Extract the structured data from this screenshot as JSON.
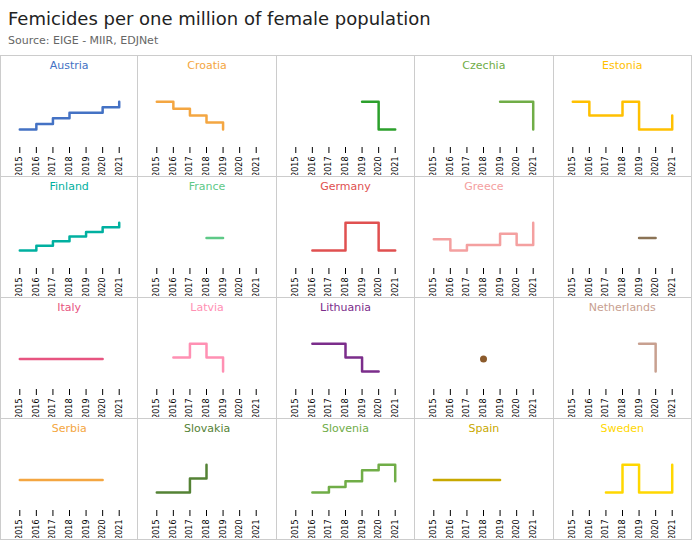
{
  "title": "Femicides per one million of female population",
  "subtitle": "Source: EIGE - MIIR, EDJNet",
  "chart_data": [
    {
      "type": "line",
      "line_style": "step",
      "title": "Austria",
      "color": "#4472c4",
      "x": [
        2015,
        2016,
        2017,
        2018,
        2019,
        2020,
        2021
      ],
      "values": [
        3.0,
        3.5,
        4.0,
        4.5,
        4.5,
        5.0,
        5.5
      ],
      "xlim": [
        2014.5,
        2021.5
      ],
      "xticks": [
        2015,
        2016,
        2017,
        2018,
        2019,
        2020,
        2021
      ],
      "ylim": [
        1.375,
        7.5
      ],
      "tick_labels": "x"
    },
    {
      "type": "line",
      "line_style": "step",
      "title": "Croatia",
      "color": "#f4a641",
      "x": [
        2015,
        2016,
        2017,
        2018,
        2019,
        2020,
        2021
      ],
      "values": [
        5.0,
        4.5,
        4.0,
        3.5,
        3.0,
        null,
        null
      ],
      "xlim": [
        2014.5,
        2021.5
      ],
      "xticks": [
        2015,
        2016,
        2017,
        2018,
        2019,
        2020,
        2021
      ],
      "ylim": [
        1.7,
        6.6
      ],
      "tick_labels": "x"
    },
    {
      "type": "line",
      "line_style": "step",
      "color": "#2ca02c",
      "x": [
        2015,
        2016,
        2017,
        2018,
        2019,
        2020,
        2021
      ],
      "values": [
        null,
        null,
        null,
        null,
        9.0,
        5.0,
        5.0
      ],
      "xlim": [
        2014.5,
        2021.5
      ],
      "xticks": [
        2015,
        2016,
        2017,
        2018,
        2019,
        2020,
        2021
      ],
      "ylim": [
        2.4,
        12.2
      ],
      "tick_labels": "x"
    },
    {
      "type": "line",
      "line_style": "step",
      "title": "Czechia",
      "color": "#70ad47",
      "x": [
        2015,
        2016,
        2017,
        2018,
        2019,
        2020,
        2021
      ],
      "values": [
        null,
        null,
        null,
        null,
        3.0,
        3.0,
        2.0
      ],
      "xlim": [
        2014.5,
        2021.5
      ],
      "xticks": [
        2015,
        2016,
        2017,
        2018,
        2019,
        2020,
        2021
      ],
      "ylim": [
        1.35,
        3.8
      ],
      "tick_labels": "x"
    },
    {
      "type": "line",
      "line_style": "step",
      "title": "Estonia",
      "color": "#ffc000",
      "x": [
        2015,
        2016,
        2017,
        2018,
        2019,
        2020,
        2021
      ],
      "values": [
        5.0,
        4.0,
        4.0,
        5.0,
        3.0,
        3.0,
        4.0
      ],
      "xlim": [
        2014.5,
        2021.5
      ],
      "xticks": [
        2015,
        2016,
        2017,
        2018,
        2019,
        2020,
        2021
      ],
      "ylim": [
        1.7,
        6.6
      ],
      "tick_labels": "x"
    },
    {
      "type": "line",
      "line_style": "step",
      "title": "Finland",
      "color": "#00b0a0",
      "x": [
        2015,
        2016,
        2017,
        2018,
        2019,
        2020,
        2021
      ],
      "values": [
        2.0,
        2.5,
        3.0,
        3.5,
        4.0,
        4.5,
        5.0
      ],
      "xlim": [
        2014.5,
        2021.5
      ],
      "xticks": [
        2015,
        2016,
        2017,
        2018,
        2019,
        2020,
        2021
      ],
      "ylim": [
        0.05,
        7.4
      ],
      "tick_labels": "x"
    },
    {
      "type": "line",
      "line_style": "step",
      "title": "France",
      "color": "#5ec987",
      "x": [
        2015,
        2016,
        2017,
        2018,
        2019,
        2020,
        2021
      ],
      "values": [
        null,
        null,
        null,
        3.0,
        3.0,
        null,
        null
      ],
      "xlim": [
        2014.5,
        2021.5
      ],
      "xticks": [
        2015,
        2016,
        2017,
        2018,
        2019,
        2020,
        2021
      ],
      "ylim": [
        2.35,
        3.8
      ],
      "tick_labels": "x"
    },
    {
      "type": "line",
      "line_style": "step",
      "title": "Germany",
      "color": "#e05050",
      "x": [
        2015,
        2016,
        2017,
        2018,
        2019,
        2020,
        2021
      ],
      "values": [
        null,
        4.0,
        4.0,
        5.0,
        5.0,
        4.0,
        4.0
      ],
      "xlim": [
        2014.5,
        2021.5
      ],
      "xticks": [
        2015,
        2016,
        2017,
        2018,
        2019,
        2020,
        2021
      ],
      "ylim": [
        3.35,
        5.8
      ],
      "tick_labels": "x"
    },
    {
      "type": "line",
      "line_style": "step",
      "title": "Greece",
      "color": "#f4a0a0",
      "x": [
        2015,
        2016,
        2017,
        2018,
        2019,
        2020,
        2021
      ],
      "values": [
        4.0,
        3.0,
        3.5,
        3.5,
        4.5,
        3.5,
        5.5
      ],
      "xlim": [
        2014.5,
        2021.5
      ],
      "xticks": [
        2015,
        2016,
        2017,
        2018,
        2019,
        2020,
        2021
      ],
      "ylim": [
        1.375,
        7.5
      ],
      "tick_labels": "x"
    },
    {
      "type": "line",
      "line_style": "step",
      "color": "#8b7355",
      "x": [
        2015,
        2016,
        2017,
        2018,
        2019,
        2020,
        2021
      ],
      "values": [
        null,
        null,
        null,
        null,
        3.0,
        3.0,
        null
      ],
      "xlim": [
        2014.5,
        2021.5
      ],
      "xticks": [
        2015,
        2016,
        2017,
        2018,
        2019,
        2020,
        2021
      ],
      "ylim": [
        2.35,
        3.8
      ],
      "tick_labels": "x"
    },
    {
      "type": "line",
      "line_style": "step",
      "title": "Italy",
      "color": "#e75480",
      "x": [
        2015,
        2016,
        2017,
        2018,
        2019,
        2020,
        2021
      ],
      "values": [
        2.0,
        2.0,
        2.0,
        2.0,
        2.0,
        2.0,
        null
      ],
      "xlim": [
        2014.5,
        2021.5
      ],
      "xticks": [
        2015,
        2016,
        2017,
        2018,
        2019,
        2020,
        2021
      ],
      "ylim": [
        1.35,
        2.8
      ],
      "tick_labels": "x"
    },
    {
      "type": "line",
      "line_style": "step",
      "title": "Latvia",
      "color": "#ff90b3",
      "x": [
        2015,
        2016,
        2017,
        2018,
        2019,
        2020,
        2021
      ],
      "values": [
        null,
        5.0,
        6.0,
        5.0,
        4.0,
        null,
        null
      ],
      "xlim": [
        2014.5,
        2021.5
      ],
      "xticks": [
        2015,
        2016,
        2017,
        2018,
        2019,
        2020,
        2021
      ],
      "ylim": [
        2.7,
        7.6
      ],
      "tick_labels": "x"
    },
    {
      "type": "line",
      "line_style": "step",
      "title": "Lithuania",
      "color": "#7b2d8b",
      "x": [
        2015,
        2016,
        2017,
        2018,
        2019,
        2020,
        2021
      ],
      "values": [
        null,
        5.0,
        5.0,
        4.0,
        3.0,
        3.0,
        null
      ],
      "xlim": [
        2014.5,
        2021.5
      ],
      "xticks": [
        2015,
        2016,
        2017,
        2018,
        2019,
        2020,
        2021
      ],
      "ylim": [
        1.7,
        6.6
      ],
      "tick_labels": "x"
    },
    {
      "type": "scatter",
      "marker": "dot",
      "color": "#8b5a2b",
      "x": [
        2015,
        2016,
        2017,
        2018,
        2019,
        2020,
        2021
      ],
      "values": [
        null,
        null,
        null,
        4.0,
        null,
        null,
        null
      ],
      "xlim": [
        2014.5,
        2021.5
      ],
      "xticks": [
        2015,
        2016,
        2017,
        2018,
        2019,
        2020,
        2021
      ],
      "ylim": [
        3.35,
        4.8
      ],
      "tick_labels": "x"
    },
    {
      "type": "line",
      "line_style": "step",
      "title": "Netherlands",
      "color": "#c8a090",
      "x": [
        2015,
        2016,
        2017,
        2018,
        2019,
        2020,
        2021
      ],
      "values": [
        null,
        null,
        null,
        null,
        3.0,
        2.5,
        null
      ],
      "xlim": [
        2014.5,
        2021.5
      ],
      "xticks": [
        2015,
        2016,
        2017,
        2018,
        2019,
        2020,
        2021
      ],
      "ylim": [
        2.175,
        3.4
      ],
      "tick_labels": "x"
    },
    {
      "type": "line",
      "line_style": "step",
      "title": "Serbia",
      "color": "#f4a641",
      "x": [
        2015,
        2016,
        2017,
        2018,
        2019,
        2020,
        2021
      ],
      "values": [
        3.0,
        3.0,
        3.0,
        3.0,
        3.0,
        3.0,
        null
      ],
      "xlim": [
        2014.5,
        2021.5
      ],
      "xticks": [
        2015,
        2016,
        2017,
        2018,
        2019,
        2020,
        2021
      ],
      "ylim": [
        2.35,
        3.8
      ],
      "tick_labels": "x"
    },
    {
      "type": "line",
      "line_style": "step",
      "title": "Slovakia",
      "color": "#548235",
      "x": [
        2015,
        2016,
        2017,
        2018,
        2019,
        2020,
        2021
      ],
      "values": [
        2.0,
        2.0,
        2.5,
        3.0,
        null,
        null,
        null
      ],
      "xlim": [
        2014.5,
        2021.5
      ],
      "xticks": [
        2015,
        2016,
        2017,
        2018,
        2019,
        2020,
        2021
      ],
      "ylim": [
        1.35,
        3.8
      ],
      "tick_labels": "x"
    },
    {
      "type": "line",
      "line_style": "step",
      "title": "Slovenia",
      "color": "#70ad47",
      "x": [
        2015,
        2016,
        2017,
        2018,
        2019,
        2020,
        2021
      ],
      "values": [
        null,
        3.0,
        3.5,
        4.0,
        5.0,
        5.5,
        4.0
      ],
      "xlim": [
        2014.5,
        2021.5
      ],
      "xticks": [
        2015,
        2016,
        2017,
        2018,
        2019,
        2020,
        2021
      ],
      "ylim": [
        1.375,
        7.5
      ],
      "tick_labels": "x"
    },
    {
      "type": "line",
      "line_style": "step",
      "title": "Spain",
      "color": "#c8a800",
      "x": [
        2015,
        2016,
        2017,
        2018,
        2019,
        2020,
        2021
      ],
      "values": [
        2.0,
        2.0,
        2.0,
        2.0,
        2.0,
        null,
        null
      ],
      "xlim": [
        2014.5,
        2021.5
      ],
      "xticks": [
        2015,
        2016,
        2017,
        2018,
        2019,
        2020,
        2021
      ],
      "ylim": [
        1.35,
        2.8
      ],
      "tick_labels": "x"
    },
    {
      "type": "line",
      "line_style": "step",
      "title": "Sweden",
      "color": "#ffd700",
      "x": [
        2015,
        2016,
        2017,
        2018,
        2019,
        2020,
        2021
      ],
      "values": [
        null,
        null,
        3.0,
        4.0,
        3.0,
        3.0,
        4.0
      ],
      "xlim": [
        2014.5,
        2021.5
      ],
      "xticks": [
        2015,
        2016,
        2017,
        2018,
        2019,
        2020,
        2021
      ],
      "ylim": [
        2.35,
        4.8
      ],
      "tick_labels": "x"
    }
  ]
}
